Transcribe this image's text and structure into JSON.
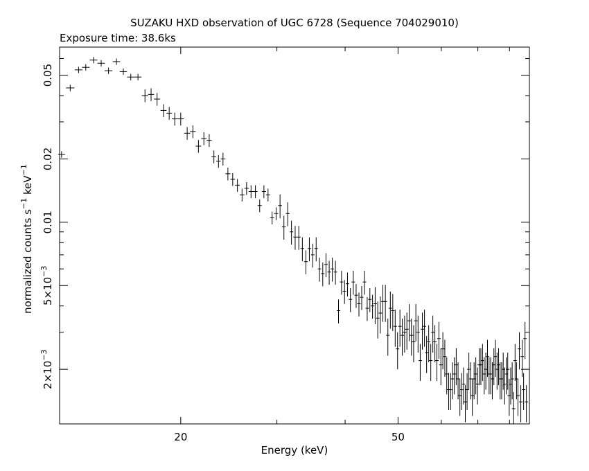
{
  "chart_data": {
    "type": "scatter",
    "title": "SUZAKU HXD observation of UGC 6728 (Sequence 704029010)",
    "subtitle": "Exposure time: 38.6ks",
    "xlabel": "Energy (keV)",
    "ylabel": {
      "base": "normalized counts s",
      "sup1": "−1",
      "mid": " keV",
      "sup2": "−1"
    },
    "xscale": "log",
    "yscale": "log",
    "xlim": [
      12.0,
      87.0
    ],
    "ylim": [
      0.0011,
      0.068
    ],
    "grid": false,
    "x_ticks": [
      {
        "value": 20,
        "label": "20"
      },
      {
        "value": 50,
        "label": "50"
      }
    ],
    "y_ticks": [
      {
        "value": 0.05,
        "label": "0.05"
      },
      {
        "value": 0.02,
        "label": "0.02"
      },
      {
        "value": 0.01,
        "label": "0.01"
      },
      {
        "value": 0.005,
        "label": "5×10",
        "exp": "−3"
      },
      {
        "value": 0.002,
        "label": "2×10",
        "exp": "−3"
      }
    ],
    "series": [
      {
        "color": "#000000",
        "points": [
          [
            12.1,
            0.021
          ],
          [
            12.55,
            0.0435
          ],
          [
            13.0,
            0.053
          ],
          [
            13.4,
            0.0545
          ],
          [
            13.85,
            0.059
          ],
          [
            14.3,
            0.057
          ],
          [
            14.75,
            0.0525
          ],
          [
            15.25,
            0.058
          ],
          [
            15.7,
            0.052
          ],
          [
            16.2,
            0.049
          ],
          [
            16.7,
            0.049
          ],
          [
            17.2,
            0.04
          ],
          [
            17.65,
            0.0405
          ],
          [
            18.1,
            0.0385
          ],
          [
            18.6,
            0.034
          ],
          [
            19.05,
            0.033
          ],
          [
            19.5,
            0.031
          ],
          [
            20.0,
            0.031
          ],
          [
            20.55,
            0.0265
          ],
          [
            21.05,
            0.027
          ],
          [
            21.55,
            0.023
          ],
          [
            22.05,
            0.025
          ],
          [
            22.55,
            0.0245
          ],
          [
            23.0,
            0.0205
          ],
          [
            23.45,
            0.0195
          ],
          [
            23.9,
            0.02
          ],
          [
            24.4,
            0.017
          ],
          [
            24.9,
            0.016
          ],
          [
            25.4,
            0.015
          ],
          [
            25.9,
            0.0135
          ],
          [
            26.4,
            0.0145
          ],
          [
            26.9,
            0.014
          ],
          [
            27.4,
            0.014
          ],
          [
            27.9,
            0.012
          ],
          [
            28.4,
            0.014
          ],
          [
            28.9,
            0.0135
          ],
          [
            29.4,
            0.0105
          ],
          [
            29.9,
            0.011
          ],
          [
            30.4,
            0.012
          ],
          [
            30.9,
            0.0095
          ],
          [
            31.4,
            0.011
          ],
          [
            31.9,
            0.009
          ],
          [
            32.4,
            0.0085
          ],
          [
            32.9,
            0.0085
          ],
          [
            33.4,
            0.0075
          ],
          [
            33.9,
            0.0065
          ],
          [
            34.4,
            0.0075
          ],
          [
            34.9,
            0.007
          ],
          [
            35.4,
            0.0075
          ],
          [
            35.9,
            0.006
          ],
          [
            36.4,
            0.0057
          ],
          [
            36.9,
            0.0063
          ],
          [
            37.4,
            0.0058
          ],
          [
            37.9,
            0.006
          ],
          [
            38.4,
            0.0058
          ],
          [
            38.9,
            0.0038
          ],
          [
            39.4,
            0.0052
          ],
          [
            39.9,
            0.0047
          ],
          [
            40.4,
            0.0051
          ],
          [
            40.9,
            0.0043
          ],
          [
            41.4,
            0.0052
          ],
          [
            41.9,
            0.0045
          ],
          [
            42.4,
            0.0041
          ],
          [
            42.9,
            0.0044
          ],
          [
            43.4,
            0.0052
          ],
          [
            43.9,
            0.0039
          ],
          [
            44.4,
            0.0043
          ],
          [
            44.9,
            0.004
          ],
          [
            45.4,
            0.0041
          ],
          [
            45.9,
            0.0035
          ],
          [
            46.4,
            0.0037
          ],
          [
            46.9,
            0.0042
          ],
          [
            47.4,
            0.0042
          ],
          [
            47.9,
            0.0029
          ],
          [
            48.4,
            0.0039
          ],
          [
            48.9,
            0.0038
          ],
          [
            49.4,
            0.0032
          ],
          [
            49.9,
            0.0025
          ],
          [
            50.4,
            0.0032
          ],
          [
            50.9,
            0.0029
          ],
          [
            51.4,
            0.003
          ],
          [
            51.9,
            0.0031
          ],
          [
            52.4,
            0.0034
          ],
          [
            52.9,
            0.0029
          ],
          [
            53.4,
            0.0027
          ],
          [
            53.9,
            0.0034
          ],
          [
            54.4,
            0.003
          ],
          [
            54.9,
            0.0022
          ],
          [
            55.4,
            0.0031
          ],
          [
            55.9,
            0.0032
          ],
          [
            56.4,
            0.0024
          ],
          [
            56.9,
            0.0027
          ],
          [
            57.4,
            0.0022
          ],
          [
            57.9,
            0.003
          ],
          [
            58.4,
            0.0027
          ],
          [
            58.9,
            0.0022
          ],
          [
            59.4,
            0.0028
          ],
          [
            59.9,
            0.0021
          ],
          [
            60.4,
            0.0025
          ],
          [
            60.9,
            0.0023
          ],
          [
            61.4,
            0.0019
          ],
          [
            61.9,
            0.0016
          ],
          [
            62.4,
            0.0016
          ],
          [
            62.9,
            0.0018
          ],
          [
            63.4,
            0.0019
          ],
          [
            63.9,
            0.0021
          ],
          [
            64.4,
            0.0018
          ],
          [
            64.9,
            0.0015
          ],
          [
            65.4,
            0.0016
          ],
          [
            65.9,
            0.0017
          ],
          [
            66.4,
            0.0014
          ],
          [
            66.9,
            0.0016
          ],
          [
            67.4,
            0.002
          ],
          [
            67.9,
            0.0018
          ],
          [
            68.4,
            0.0015
          ],
          [
            68.9,
            0.0018
          ],
          [
            69.4,
            0.0019
          ],
          [
            69.9,
            0.0017
          ],
          [
            70.4,
            0.0021
          ],
          [
            70.9,
            0.0021
          ],
          [
            71.4,
            0.0022
          ],
          [
            71.9,
            0.0019
          ],
          [
            72.4,
            0.002
          ],
          [
            72.9,
            0.0023
          ],
          [
            73.4,
            0.0019
          ],
          [
            73.9,
            0.0019
          ],
          [
            74.4,
            0.0018
          ],
          [
            74.9,
            0.0021
          ],
          [
            75.4,
            0.0023
          ],
          [
            75.9,
            0.002
          ],
          [
            76.4,
            0.0021
          ],
          [
            76.9,
            0.0018
          ],
          [
            77.4,
            0.0018
          ],
          [
            77.9,
            0.002
          ],
          [
            78.4,
            0.0017
          ],
          [
            78.9,
            0.0019
          ],
          [
            79.4,
            0.002
          ],
          [
            79.9,
            0.0015
          ],
          [
            80.4,
            0.0017
          ],
          [
            80.9,
            0.0018
          ],
          [
            81.4,
            0.0013
          ],
          [
            81.9,
            0.0022
          ],
          [
            82.4,
            0.0018
          ],
          [
            82.9,
            0.0015
          ],
          [
            83.4,
            0.0025
          ],
          [
            83.9,
            0.0014
          ],
          [
            84.4,
            0.0023
          ],
          [
            84.9,
            0.0016
          ],
          [
            85.4,
            0.0028
          ],
          [
            85.9,
            0.0014
          ]
        ]
      }
    ]
  }
}
